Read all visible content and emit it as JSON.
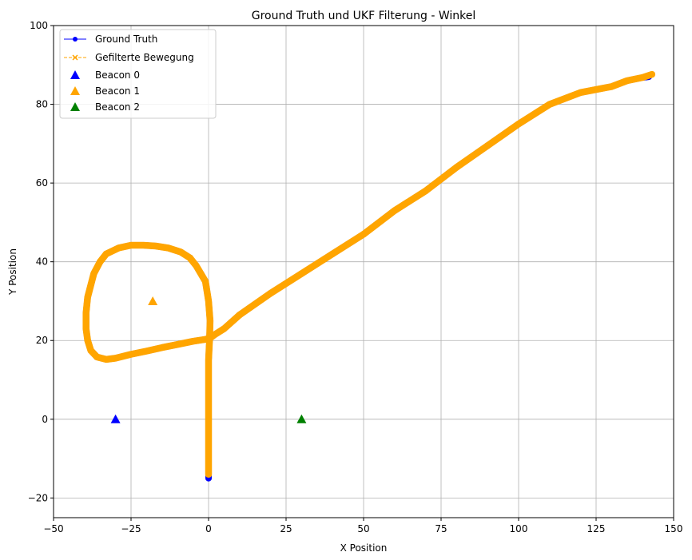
{
  "chart_data": {
    "type": "line",
    "title": "Ground Truth und UKF Filterung - Winkel",
    "xlabel": "X Position",
    "ylabel": "Y Position",
    "xlim": [
      -50,
      150
    ],
    "ylim": [
      -25,
      100
    ],
    "xticks": [
      -50,
      -25,
      0,
      25,
      50,
      75,
      100,
      125,
      150
    ],
    "yticks": [
      -20,
      0,
      20,
      40,
      60,
      80,
      100
    ],
    "xtick_labels": [
      "−50",
      "−25",
      "0",
      "25",
      "50",
      "75",
      "100",
      "125",
      "150"
    ],
    "ytick_labels": [
      "−20",
      "0",
      "20",
      "40",
      "60",
      "80",
      "100"
    ],
    "grid": true,
    "legend_position": "top-left",
    "series": [
      {
        "name": "Ground Truth",
        "color": "#0000ff",
        "marker": "circle",
        "linestyle": "solid",
        "x": [
          0,
          0,
          0,
          0,
          0,
          0,
          0,
          0.3,
          0.5,
          0,
          -1,
          -4,
          -6,
          -9,
          -13,
          -17,
          -21,
          -25,
          -29,
          -33,
          -35,
          -37,
          -39,
          -39.5,
          -39.5,
          -39,
          -38,
          -36,
          -33,
          -30,
          -25,
          -20,
          -15,
          -10,
          -5,
          -1,
          0,
          0.5,
          2,
          5,
          10,
          20,
          30,
          40,
          50,
          60,
          70,
          80,
          90,
          100,
          110,
          120,
          130,
          135,
          140,
          142
        ],
        "y": [
          -15,
          -10,
          -5,
          0,
          5,
          10,
          15,
          20,
          25,
          30,
          35,
          39,
          41,
          42.5,
          43.5,
          44,
          44.2,
          44.2,
          43.5,
          42,
          40,
          37,
          31,
          27,
          23,
          20,
          17.5,
          15.8,
          15.2,
          15.5,
          16.5,
          17.3,
          18.2,
          19,
          19.8,
          20.3,
          20.5,
          20.6,
          21.5,
          23,
          26.5,
          32,
          37,
          42,
          47,
          53,
          58,
          64,
          69.5,
          75,
          80,
          83,
          84.5,
          86,
          86.8,
          87
        ]
      },
      {
        "name": "Gefilterte Bewegung",
        "color": "#ffa500",
        "marker": "x",
        "linestyle": "dashed",
        "x": [
          0,
          0,
          0,
          0,
          0,
          0,
          0,
          0.3,
          0.5,
          0,
          -1,
          -4,
          -6,
          -9,
          -13,
          -17,
          -21,
          -25,
          -29,
          -33,
          -35,
          -37,
          -39,
          -39.5,
          -39.5,
          -39,
          -38,
          -36,
          -33,
          -30,
          -25,
          -20,
          -15,
          -10,
          -5,
          -1,
          0,
          0.5,
          2,
          5,
          10,
          20,
          30,
          40,
          50,
          60,
          70,
          80,
          90,
          100,
          110,
          120,
          130,
          135,
          140,
          143
        ],
        "y": [
          -14,
          -10,
          -5,
          0,
          5,
          10,
          15,
          20,
          25,
          30,
          35,
          39,
          41,
          42.5,
          43.5,
          44,
          44.2,
          44.2,
          43.5,
          42,
          40,
          37,
          31,
          27,
          23,
          20,
          17.5,
          15.8,
          15.2,
          15.5,
          16.5,
          17.3,
          18.2,
          19,
          19.8,
          20.3,
          20.5,
          20.6,
          21.5,
          23,
          26.5,
          32,
          37,
          42,
          47,
          53,
          58,
          64,
          69.5,
          75,
          80,
          83,
          84.5,
          86,
          86.8,
          87.6
        ]
      }
    ],
    "beacons": [
      {
        "name": "Beacon 0",
        "x": -30,
        "y": 0,
        "color": "#0000ff"
      },
      {
        "name": "Beacon 1",
        "x": -18,
        "y": 30,
        "color": "#ffa500"
      },
      {
        "name": "Beacon 2",
        "x": 30,
        "y": 0,
        "color": "#008000"
      }
    ]
  }
}
